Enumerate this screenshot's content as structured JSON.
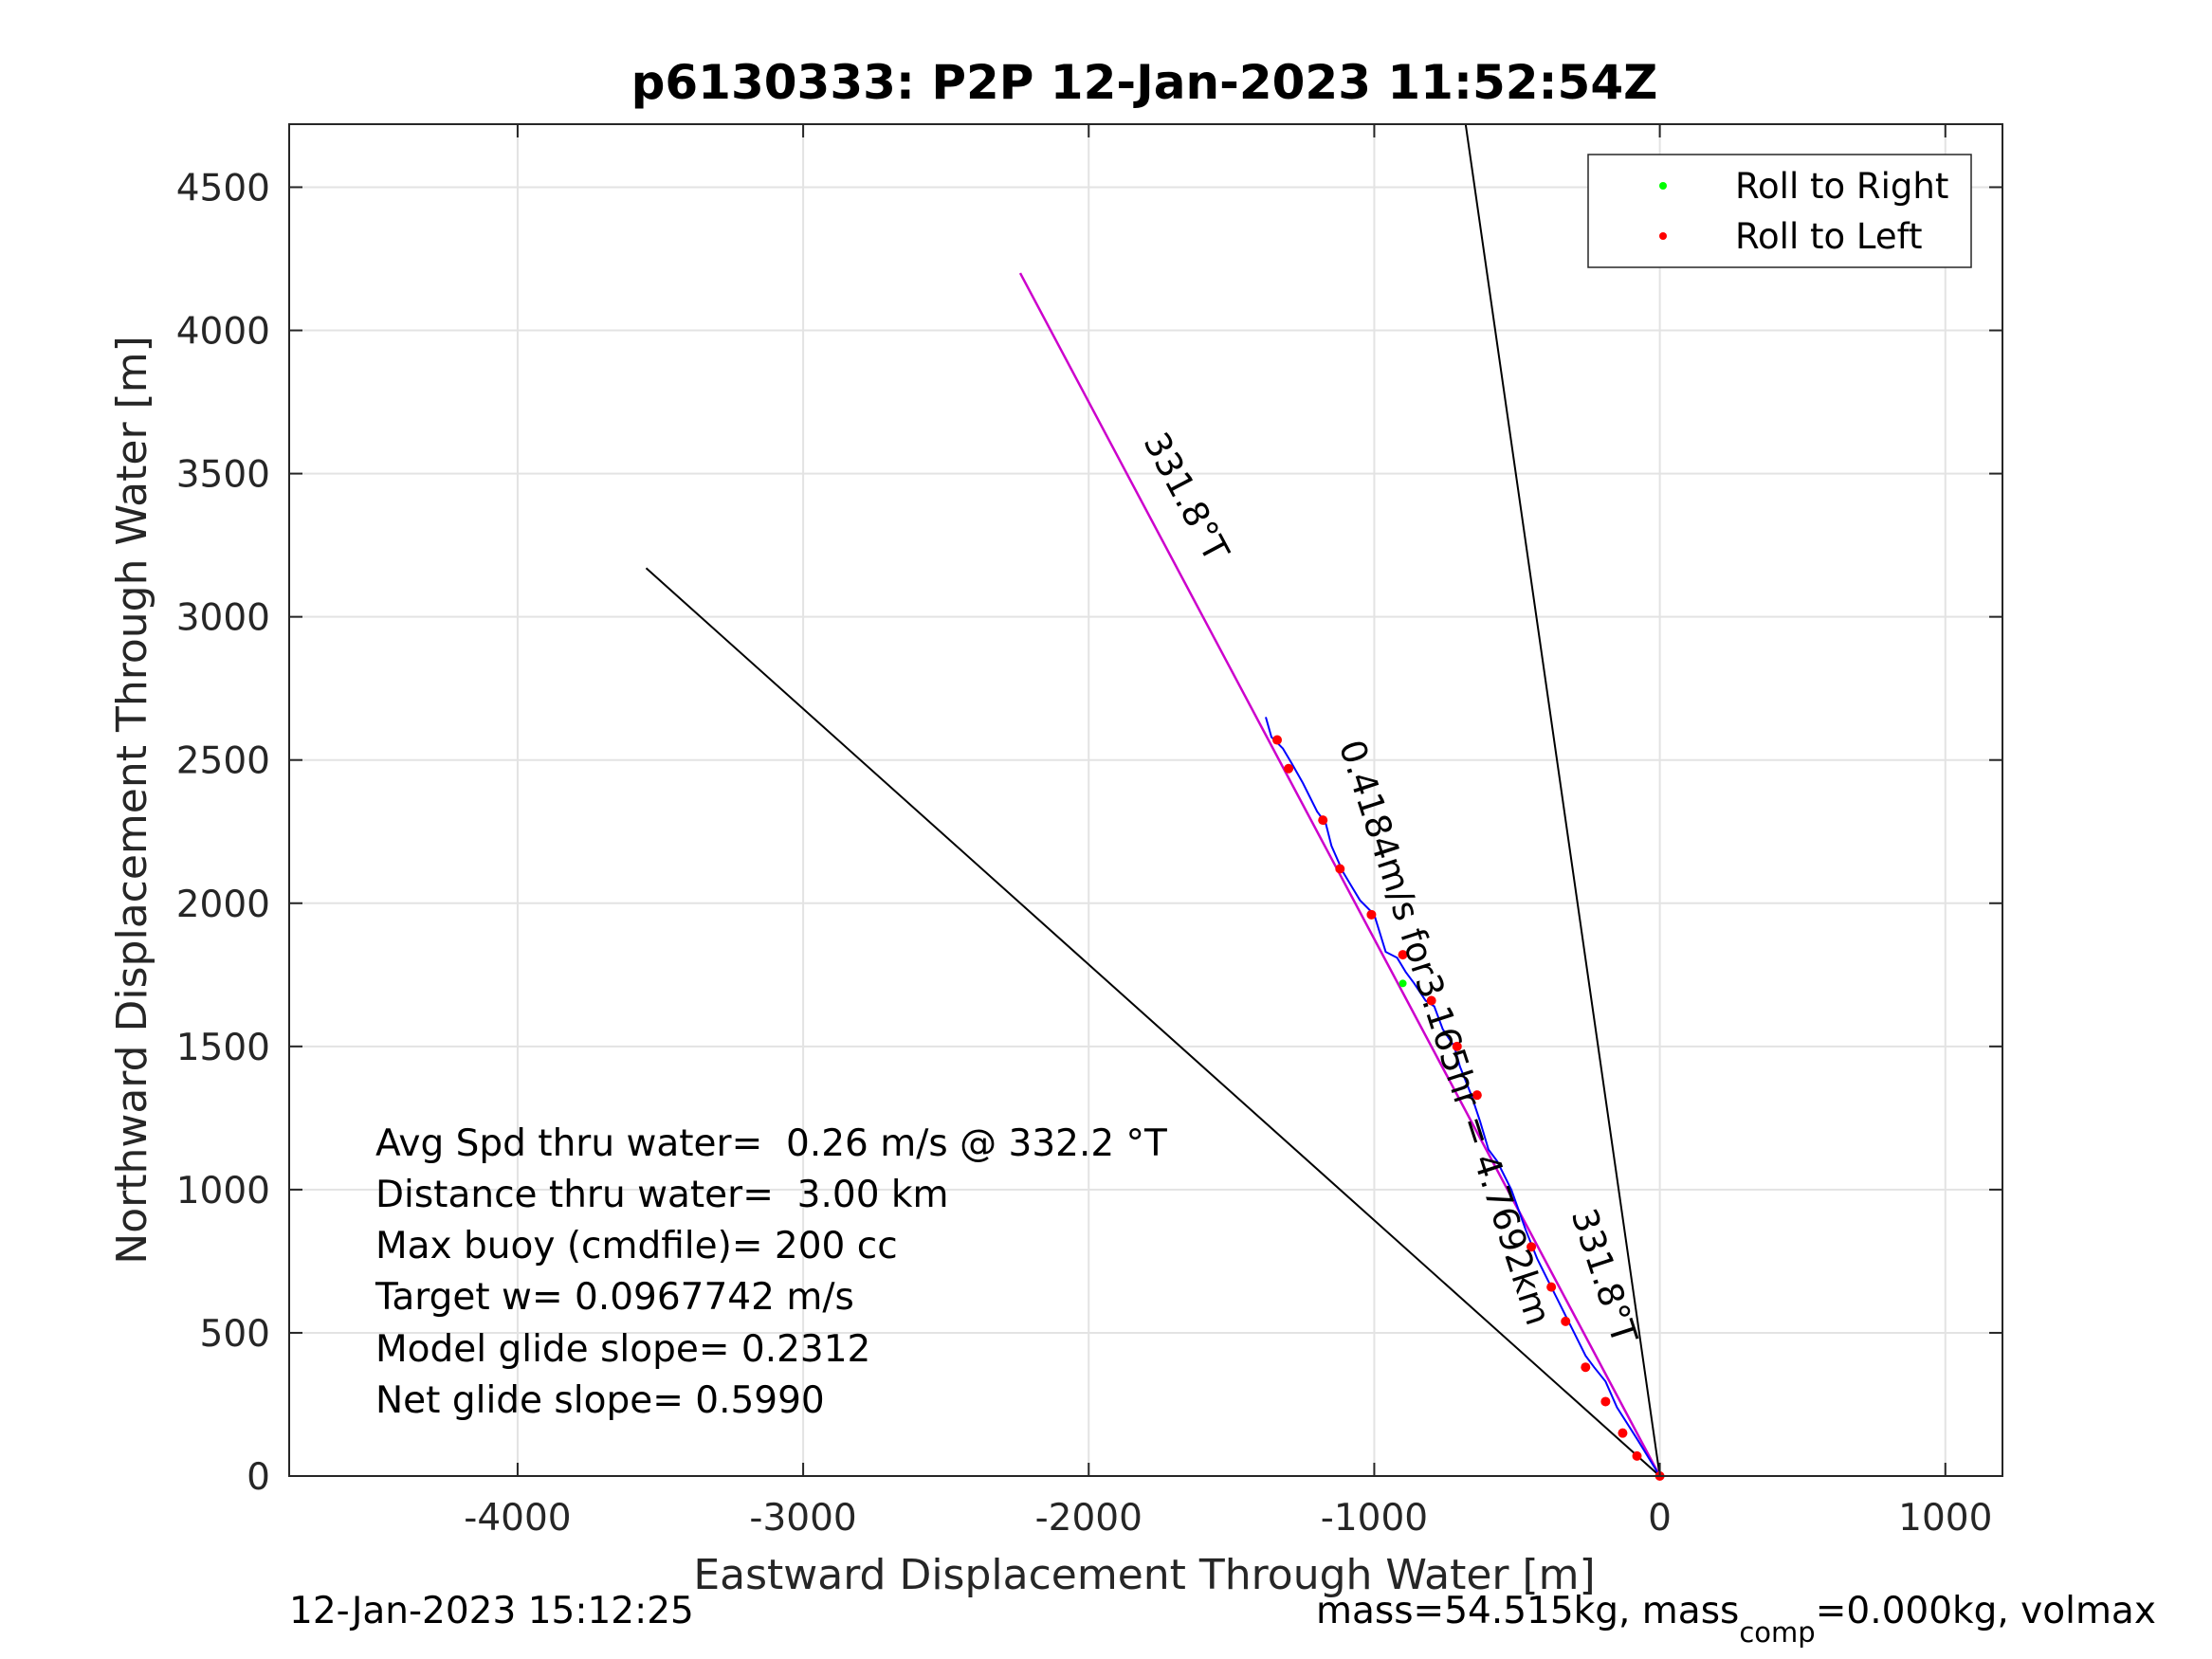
{
  "chart_data": {
    "type": "line",
    "title": "p6130333: P2P 12-Jan-2023 11:52:54Z",
    "xlabel": "Eastward Displacement Through Water [m]",
    "ylabel": "Northward Displacement Through Water [m]",
    "xlim": [
      -4800,
      1200
    ],
    "ylim": [
      0,
      4720
    ],
    "x_ticks": [
      -4000,
      -3000,
      -2000,
      -1000,
      0,
      1000
    ],
    "y_ticks": [
      0,
      500,
      1000,
      1500,
      2000,
      2500,
      3000,
      3500,
      4000,
      4500
    ],
    "grid": true,
    "legend_position": "top-right",
    "legend": [
      "Roll to Right",
      "Roll to Left"
    ],
    "colors": {
      "track": "#0000ff",
      "roll_right": "#00ff00",
      "roll_left": "#ff0000",
      "heading_line": "#cc00cc",
      "reference_lines": "#000000"
    },
    "reference_lines": [
      {
        "x": [
          0,
          -3550
        ],
        "y": [
          0,
          3170
        ]
      },
      {
        "x": [
          0,
          -680
        ],
        "y": [
          0,
          4720
        ]
      }
    ],
    "heading_line": {
      "x": [
        0,
        -2240
      ],
      "y": [
        0,
        4200
      ]
    },
    "track": {
      "x": [
        0,
        -80,
        -150,
        -190,
        -230,
        -260,
        -300,
        -330,
        -360,
        -390,
        -410,
        -430,
        -470,
        -520,
        -570,
        -600,
        -630,
        -660,
        -700,
        -720,
        -760,
        -790,
        -820,
        -860,
        -890,
        -920,
        -960,
        -1000,
        -1050,
        -1080,
        -1110,
        -1150,
        -1170,
        -1200,
        -1250,
        -1290,
        -1320,
        -1360,
        -1380
      ],
      "y": [
        0,
        130,
        240,
        330,
        380,
        420,
        500,
        560,
        620,
        680,
        720,
        760,
        860,
        1000,
        1100,
        1140,
        1240,
        1330,
        1430,
        1500,
        1560,
        1640,
        1660,
        1720,
        1760,
        1810,
        1830,
        1960,
        2010,
        2060,
        2110,
        2200,
        2280,
        2320,
        2420,
        2490,
        2540,
        2580,
        2650
      ]
    },
    "roll_left_points": {
      "x": [
        -1340,
        -1300,
        -1180,
        -1120,
        -1010,
        -900,
        -800,
        -710,
        -640,
        -450,
        -380,
        -330,
        -260,
        -190,
        -130,
        -80,
        0
      ],
      "y": [
        2570,
        2470,
        2290,
        2120,
        1960,
        1820,
        1660,
        1500,
        1330,
        800,
        660,
        540,
        380,
        260,
        150,
        70,
        0
      ]
    },
    "roll_right_points": {
      "x": [
        -900
      ],
      "y": [
        1720
      ]
    },
    "annotations": {
      "heading_far": "331.8°T",
      "segment_label": "0.4184m/s for3.165hr = 4.7692km",
      "heading_near": "331.8°T"
    },
    "stats": [
      "Avg Spd thru water=  0.26 m/s @ 332.2 °T",
      "Distance thru water=  3.00 km",
      "Max buoy (cmdfile)= 200 cc",
      "Target w= 0.0967742 m/s",
      "Model glide slope= 0.2312",
      "Net glide slope= 0.5990"
    ]
  },
  "footer": {
    "timestamp": "12-Jan-2023 15:12:25",
    "mass_text": "mass=54.515kg, mass",
    "mass_sub": "comp",
    "mass_tail": "=0.000kg, volmax"
  }
}
